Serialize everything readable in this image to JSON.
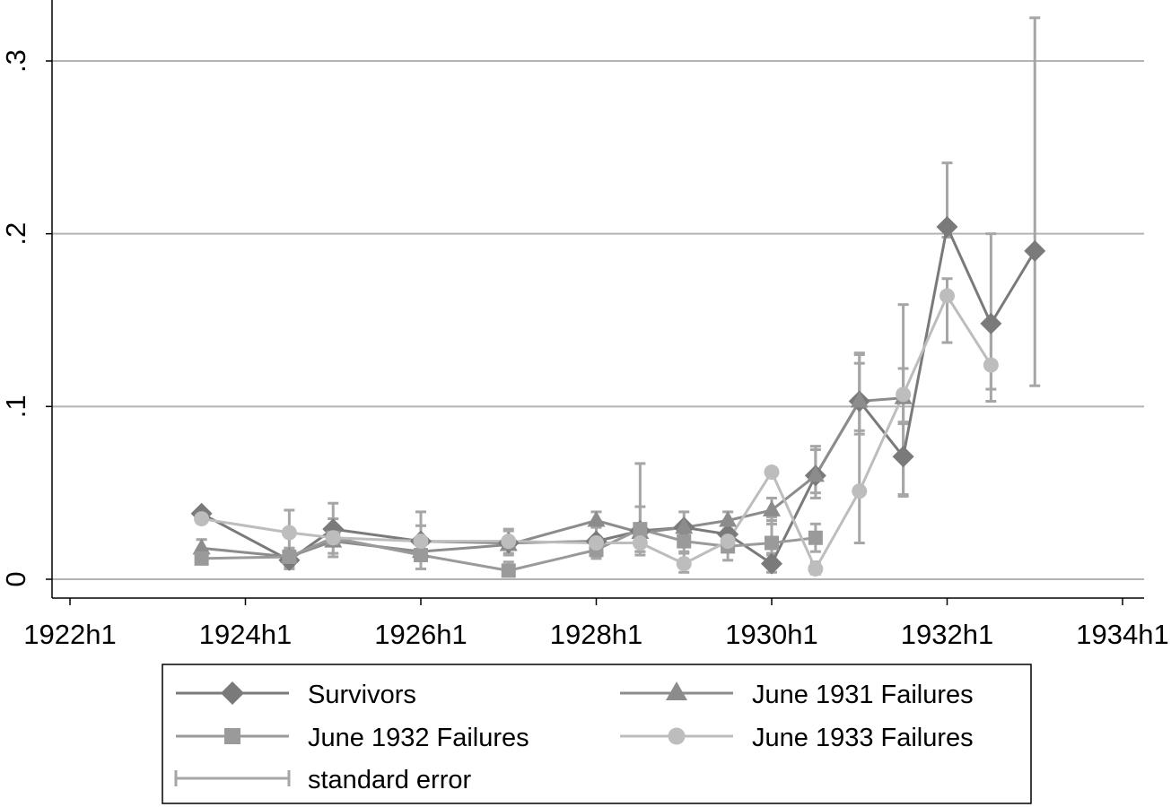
{
  "chart_data": {
    "type": "line",
    "title": "",
    "xlabel": "",
    "ylabel": "",
    "xlim": [
      1922,
      1934.25
    ],
    "ylim": [
      -0.01,
      0.35
    ],
    "x_ticks": [
      {
        "value": 1922,
        "label": "1922h1"
      },
      {
        "value": 1924,
        "label": "1924h1"
      },
      {
        "value": 1926,
        "label": "1926h1"
      },
      {
        "value": 1928,
        "label": "1928h1"
      },
      {
        "value": 1930,
        "label": "1930h1"
      },
      {
        "value": 1932,
        "label": "1932h1"
      },
      {
        "value": 1934,
        "label": "1934h1"
      }
    ],
    "y_ticks": [
      {
        "value": 0,
        "label": "0"
      },
      {
        "value": 0.1,
        "label": ".1"
      },
      {
        "value": 0.2,
        "label": ".2"
      },
      {
        "value": 0.3,
        "label": ".3"
      }
    ],
    "grid": true,
    "legend_position": "bottom",
    "series": [
      {
        "name": "Survivors",
        "marker": "diamond",
        "color": "#7a7a7a",
        "points": [
          {
            "x": 1923.5,
            "y": 0.038
          },
          {
            "x": 1924.5,
            "y": 0.011,
            "lo": 0.006,
            "hi": 0.018
          },
          {
            "x": 1925.0,
            "y": 0.029,
            "lo": 0.015,
            "hi": 0.044
          },
          {
            "x": 1926.0,
            "y": 0.022,
            "lo": 0.013,
            "hi": 0.031
          },
          {
            "x": 1927.0,
            "y": 0.021,
            "lo": 0.014,
            "hi": 0.028
          },
          {
            "x": 1928.0,
            "y": 0.022,
            "lo": 0.013,
            "hi": 0.031
          },
          {
            "x": 1928.5,
            "y": 0.028,
            "lo": 0.016,
            "hi": 0.042
          },
          {
            "x": 1929.0,
            "y": 0.03,
            "lo": 0.021,
            "hi": 0.039
          },
          {
            "x": 1929.5,
            "y": 0.026,
            "lo": 0.018,
            "hi": 0.034
          },
          {
            "x": 1930.0,
            "y": 0.009,
            "lo": 0.004,
            "hi": 0.015
          },
          {
            "x": 1930.5,
            "y": 0.06,
            "lo": 0.05,
            "hi": 0.075
          },
          {
            "x": 1931.0,
            "y": 0.103,
            "lo": 0.086,
            "hi": 0.125
          },
          {
            "x": 1931.5,
            "y": 0.071,
            "lo": 0.049,
            "hi": 0.091
          },
          {
            "x": 1932.0,
            "y": 0.204,
            "lo": 0.198,
            "hi": 0.241
          },
          {
            "x": 1932.5,
            "y": 0.148,
            "lo": 0.11,
            "hi": 0.2
          },
          {
            "x": 1933.0,
            "y": 0.19,
            "lo": 0.112,
            "hi": 0.325
          }
        ]
      },
      {
        "name": "June 1931 Failures",
        "marker": "triangle",
        "color": "#8c8c8c",
        "points": [
          {
            "x": 1923.5,
            "y": 0.018,
            "lo": 0.013,
            "hi": 0.023
          },
          {
            "x": 1924.5,
            "y": 0.013
          },
          {
            "x": 1925.0,
            "y": 0.022
          },
          {
            "x": 1926.0,
            "y": 0.016
          },
          {
            "x": 1927.0,
            "y": 0.02
          },
          {
            "x": 1928.0,
            "y": 0.034,
            "lo": 0.03,
            "hi": 0.039
          },
          {
            "x": 1928.5,
            "y": 0.027
          },
          {
            "x": 1929.0,
            "y": 0.03
          },
          {
            "x": 1929.5,
            "y": 0.034,
            "lo": 0.029,
            "hi": 0.039
          },
          {
            "x": 1930.0,
            "y": 0.04,
            "lo": 0.032,
            "hi": 0.047
          },
          {
            "x": 1930.5,
            "y": 0.06,
            "lo": 0.047,
            "hi": 0.077
          },
          {
            "x": 1931.0,
            "y": 0.103,
            "lo": 0.084,
            "hi": 0.131
          },
          {
            "x": 1931.5,
            "y": 0.105,
            "lo": 0.09,
            "hi": 0.122
          }
        ]
      },
      {
        "name": "June 1932 Failures",
        "marker": "square",
        "color": "#9a9a9a",
        "points": [
          {
            "x": 1923.5,
            "y": 0.012
          },
          {
            "x": 1924.5,
            "y": 0.013,
            "lo": 0.007,
            "hi": 0.018
          },
          {
            "x": 1925.0,
            "y": 0.024
          },
          {
            "x": 1926.0,
            "y": 0.014
          },
          {
            "x": 1927.0,
            "y": 0.005,
            "lo": 0.002,
            "hi": 0.01
          },
          {
            "x": 1928.0,
            "y": 0.017,
            "lo": 0.012,
            "hi": 0.023
          },
          {
            "x": 1928.5,
            "y": 0.029,
            "lo": 0.016,
            "hi": 0.067
          },
          {
            "x": 1929.0,
            "y": 0.022,
            "lo": 0.016,
            "hi": 0.028
          },
          {
            "x": 1929.5,
            "y": 0.019,
            "lo": 0.011,
            "hi": 0.027
          },
          {
            "x": 1930.0,
            "y": 0.021,
            "lo": 0.014,
            "hi": 0.034
          },
          {
            "x": 1930.5,
            "y": 0.024,
            "lo": 0.016,
            "hi": 0.032
          }
        ]
      },
      {
        "name": "June 1933 Failures",
        "marker": "circle",
        "color": "#bdbdbd",
        "points": [
          {
            "x": 1923.5,
            "y": 0.035
          },
          {
            "x": 1924.5,
            "y": 0.027,
            "lo": 0.017,
            "hi": 0.04
          },
          {
            "x": 1925.0,
            "y": 0.024,
            "lo": 0.013,
            "hi": 0.035
          },
          {
            "x": 1926.0,
            "y": 0.022,
            "lo": 0.006,
            "hi": 0.039
          },
          {
            "x": 1927.0,
            "y": 0.022,
            "lo": 0.015,
            "hi": 0.029
          },
          {
            "x": 1928.0,
            "y": 0.021
          },
          {
            "x": 1928.5,
            "y": 0.021,
            "lo": 0.014,
            "hi": 0.028
          },
          {
            "x": 1929.0,
            "y": 0.009,
            "lo": 0.004,
            "hi": 0.015
          },
          {
            "x": 1929.5,
            "y": 0.022
          },
          {
            "x": 1930.0,
            "y": 0.062,
            "lo": 0.032,
            "hi": 0.036
          },
          {
            "x": 1930.5,
            "y": 0.006,
            "lo": 0.003,
            "hi": 0.01
          },
          {
            "x": 1931.0,
            "y": 0.051,
            "lo": 0.021,
            "hi": 0.13
          },
          {
            "x": 1931.5,
            "y": 0.107,
            "lo": 0.048,
            "hi": 0.159
          },
          {
            "x": 1932.0,
            "y": 0.164,
            "lo": 0.137,
            "hi": 0.174
          },
          {
            "x": 1932.5,
            "y": 0.124,
            "lo": 0.103,
            "hi": 0.146
          }
        ]
      }
    ],
    "error_color": "#a6a6a6",
    "legend": [
      {
        "label": "Survivors",
        "marker": "diamond",
        "color": "#7a7a7a"
      },
      {
        "label": "June 1931 Failures",
        "marker": "triangle",
        "color": "#8c8c8c"
      },
      {
        "label": "June 1932 Failures",
        "marker": "square",
        "color": "#9a9a9a"
      },
      {
        "label": "June 1933 Failures",
        "marker": "circle",
        "color": "#bdbdbd"
      },
      {
        "label": "standard error",
        "marker": "errorbar",
        "color": "#a6a6a6"
      }
    ]
  }
}
